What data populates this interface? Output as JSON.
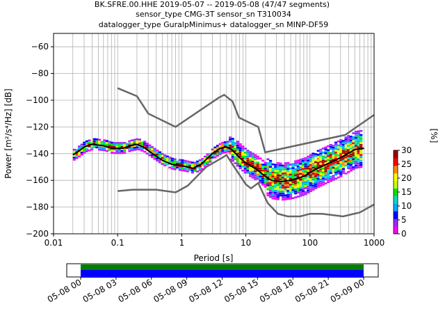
{
  "title_lines": [
    "BK.SFRE.00.HHE   2019-05-07 -- 2019-05-08  (47/47 segments)",
    "sensor_type CMG-3T sensor_sn T310034",
    "datalogger_type GuralpMinimus+ datalogger_sn MINP-DF59"
  ],
  "chart_data": {
    "type": "heatmap",
    "xlabel": "Period [s]",
    "ylabel": "Power [m²/s⁴/Hz] [dB]",
    "xscale": "log",
    "xlim": [
      0.01,
      1000
    ],
    "ylim": [
      -200,
      -50
    ],
    "xticks": [
      0.01,
      0.1,
      1,
      10,
      100,
      1000
    ],
    "xtick_labels": [
      "0.01",
      "0.1",
      "1",
      "10",
      "100",
      "1000"
    ],
    "yticks": [
      -200,
      -180,
      -160,
      -140,
      -120,
      -100,
      -80,
      -60
    ],
    "ytick_labels": [
      "−200",
      "−180",
      "−160",
      "−140",
      "−120",
      "−100",
      "−80",
      "−60"
    ],
    "grid": true,
    "noise_models": [
      {
        "points": [
          [
            0.1,
            -91
          ],
          [
            0.2,
            -97
          ],
          [
            0.3,
            -110
          ],
          [
            0.8,
            -120
          ],
          [
            3.8,
            -98
          ],
          [
            4.6,
            -96
          ],
          [
            6.2,
            -101
          ],
          [
            7.8,
            -113
          ],
          [
            15.6,
            -120
          ],
          [
            20,
            -139
          ],
          [
            354,
            -126
          ],
          [
            1000,
            -111
          ]
        ]
      },
      {
        "points": [
          [
            0.1,
            -168
          ],
          [
            0.17,
            -167
          ],
          [
            0.4,
            -167
          ],
          [
            0.8,
            -169
          ],
          [
            1.24,
            -164
          ],
          [
            2.4,
            -150
          ],
          [
            4.3,
            -143
          ],
          [
            5,
            -141
          ],
          [
            6,
            -147
          ],
          [
            10,
            -163
          ],
          [
            12,
            -166
          ],
          [
            15.6,
            -162
          ],
          [
            21.9,
            -177
          ],
          [
            31.6,
            -185
          ],
          [
            45,
            -187
          ],
          [
            70,
            -187
          ],
          [
            101,
            -185
          ],
          [
            154,
            -185
          ],
          [
            328,
            -187
          ],
          [
            600,
            -184
          ],
          [
            1000,
            -178
          ]
        ]
      }
    ],
    "mean_curve": [
      [
        0.02,
        -141
      ],
      [
        0.025,
        -138
      ],
      [
        0.03,
        -135
      ],
      [
        0.04,
        -133
      ],
      [
        0.06,
        -134
      ],
      [
        0.08,
        -136
      ],
      [
        0.12,
        -136
      ],
      [
        0.16,
        -134
      ],
      [
        0.2,
        -133
      ],
      [
        0.25,
        -135
      ],
      [
        0.35,
        -140
      ],
      [
        0.5,
        -145
      ],
      [
        0.7,
        -148
      ],
      [
        1,
        -149
      ],
      [
        1.5,
        -151
      ],
      [
        2,
        -148
      ],
      [
        3,
        -140
      ],
      [
        4,
        -136
      ],
      [
        5,
        -135
      ],
      [
        6,
        -137
      ],
      [
        8,
        -143
      ],
      [
        10,
        -147
      ],
      [
        15,
        -152
      ],
      [
        20,
        -157
      ],
      [
        25,
        -160
      ],
      [
        35,
        -161
      ],
      [
        50,
        -160
      ],
      [
        80,
        -157
      ],
      [
        120,
        -152
      ],
      [
        200,
        -147
      ],
      [
        300,
        -143
      ],
      [
        500,
        -137
      ],
      [
        700,
        -136
      ]
    ],
    "density_colorbar": {
      "label": "[%]",
      "range": [
        0,
        30
      ],
      "ticks": [
        "0",
        "5",
        "10",
        "15",
        "20",
        "25",
        "30"
      ],
      "colormap": [
        "#ffffff",
        "#ff00ff",
        "#9e27ff",
        "#0000ff",
        "#00aaff",
        "#00dcc8",
        "#00e600",
        "#c8ff00",
        "#ffff00",
        "#ff8800",
        "#ff0000",
        "#a00000"
      ]
    },
    "timeline": {
      "ticks": [
        "05-08 00",
        "05-08 03",
        "05-08 06",
        "05-08 09",
        "05-08 12",
        "05-08 15",
        "05-08 18",
        "05-08 21",
        "05-09 00"
      ],
      "bars": [
        {
          "color": "#008000"
        },
        {
          "color": "#0000ff"
        }
      ]
    }
  }
}
